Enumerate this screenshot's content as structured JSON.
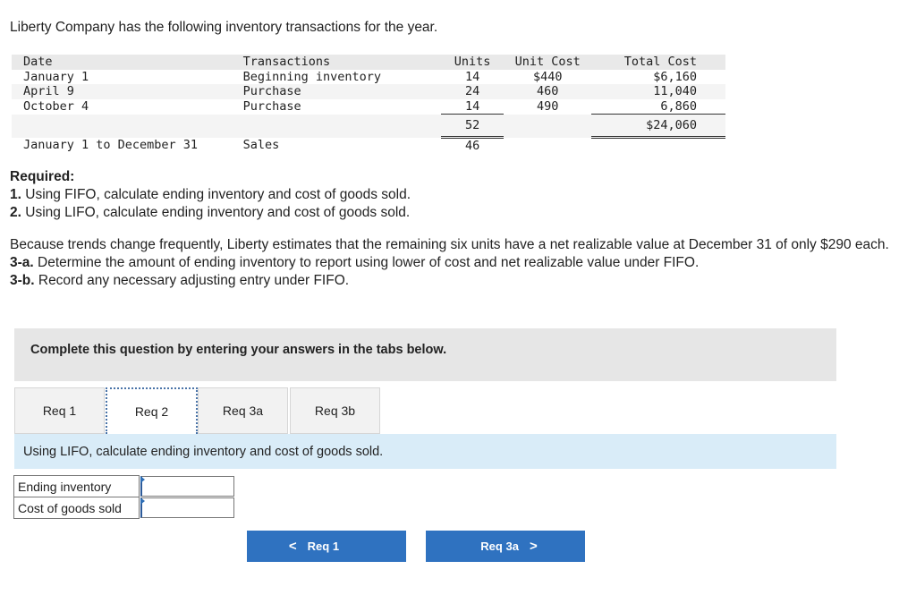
{
  "intro": "Liberty Company has the following inventory transactions for the year.",
  "table": {
    "headers": {
      "date": "Date",
      "transactions": "Transactions",
      "units": "Units",
      "unit_cost": "Unit Cost",
      "total_cost": "Total Cost"
    },
    "rows": [
      {
        "date": "January 1",
        "transactions": "Beginning inventory",
        "units": "14",
        "unit_cost": "$440",
        "total_cost": "$6,160"
      },
      {
        "date": "April 9",
        "transactions": "Purchase",
        "units": "24",
        "unit_cost": "460",
        "total_cost": "11,040"
      },
      {
        "date": "October 4",
        "transactions": "Purchase",
        "units": "14",
        "unit_cost": "490",
        "total_cost": "6,860"
      }
    ],
    "total_units": "52",
    "total_cost": "$24,060",
    "sales": {
      "date": "January 1 to December 31",
      "transactions": "Sales",
      "units": "46"
    }
  },
  "required": {
    "heading": "Required:",
    "items": [
      {
        "num": "1.",
        "text": " Using FIFO, calculate ending inventory and cost of goods sold."
      },
      {
        "num": "2.",
        "text": " Using LIFO, calculate ending inventory and cost of goods sold."
      }
    ]
  },
  "para": {
    "text": "Because trends change frequently, Liberty estimates that the remaining six units have a net realizable value at December 31 of only $290 each.",
    "items": [
      {
        "num": "3-a.",
        "text": " Determine the amount of ending inventory to report using lower of cost and net realizable value under FIFO."
      },
      {
        "num": "3-b.",
        "text": " Record any necessary adjusting entry under FIFO."
      }
    ]
  },
  "banner": "Complete this question by entering your answers in the tabs below.",
  "tabs": [
    {
      "label": "Req 1"
    },
    {
      "label": "Req 2"
    },
    {
      "label": "Req 3a"
    },
    {
      "label": "Req 3b"
    }
  ],
  "panel_text": "Using LIFO, calculate ending inventory and cost of goods sold.",
  "answers": [
    {
      "label": "Ending inventory",
      "value": ""
    },
    {
      "label": "Cost of goods sold",
      "value": ""
    }
  ],
  "nav": {
    "prev_label": "Req 1",
    "next_label": "Req 3a"
  }
}
